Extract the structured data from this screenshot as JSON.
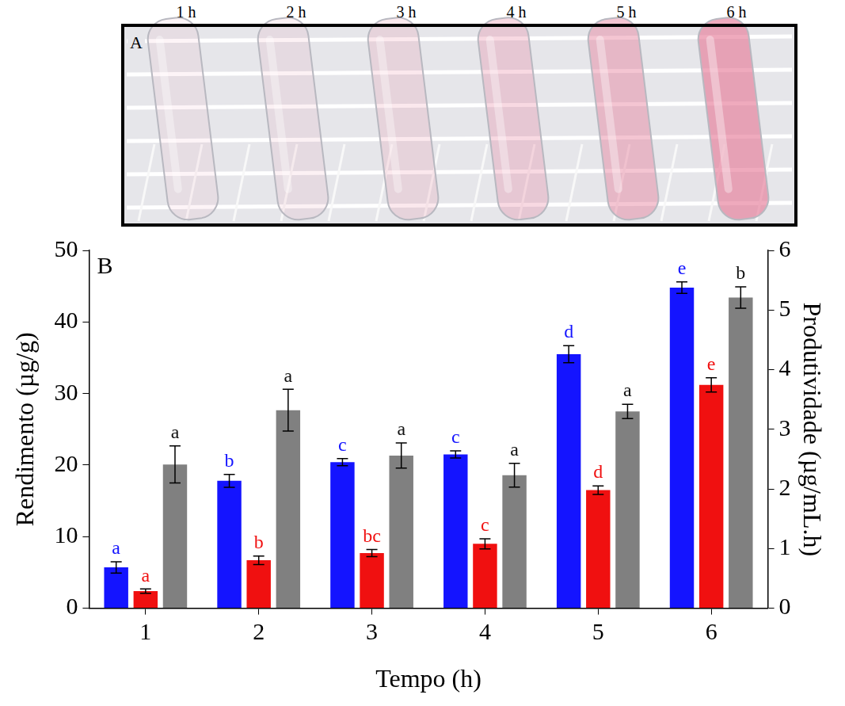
{
  "photo": {
    "panel": "A",
    "labels": [
      "1 h",
      "2 h",
      "3 h",
      "4 h",
      "5 h",
      "6 h"
    ]
  },
  "chart_data": {
    "type": "bar",
    "panel": "B",
    "categories": [
      "1",
      "2",
      "3",
      "4",
      "5",
      "6"
    ],
    "x_label": "Tempo (h)",
    "y_label": "Rendimento (µg/g)",
    "y2_label": "Produtividade (µg/mL.h)",
    "ylim": [
      0,
      50
    ],
    "yticks": [
      0,
      10,
      20,
      30,
      40,
      50
    ],
    "y2lim": [
      0,
      6
    ],
    "y2ticks": [
      0,
      1,
      2,
      3,
      4,
      5,
      6
    ],
    "grid": false,
    "series": [
      {
        "color": "#1414ff",
        "values": [
          5.7,
          17.8,
          20.4,
          21.5,
          35.5,
          44.8
        ],
        "errors": [
          0.8,
          0.9,
          0.5,
          0.5,
          1.2,
          0.8
        ],
        "letters": [
          "a",
          "b",
          "c",
          "c",
          "d",
          "e"
        ]
      },
      {
        "color": "#f01010",
        "values": [
          2.4,
          6.7,
          7.7,
          9.0,
          16.5,
          31.2
        ],
        "errors": [
          0.3,
          0.6,
          0.5,
          0.7,
          0.6,
          1.0
        ],
        "letters": [
          "a",
          "b",
          "bc",
          "c",
          "d",
          "e"
        ]
      },
      {
        "color": "#808080",
        "axis": "y2",
        "values": [
          2.41,
          3.32,
          2.56,
          2.23,
          3.3,
          5.21
        ],
        "errors": [
          0.31,
          0.35,
          0.21,
          0.2,
          0.12,
          0.18
        ],
        "letters": [
          "a",
          "a",
          "a",
          "a",
          "a",
          "b"
        ]
      }
    ]
  }
}
